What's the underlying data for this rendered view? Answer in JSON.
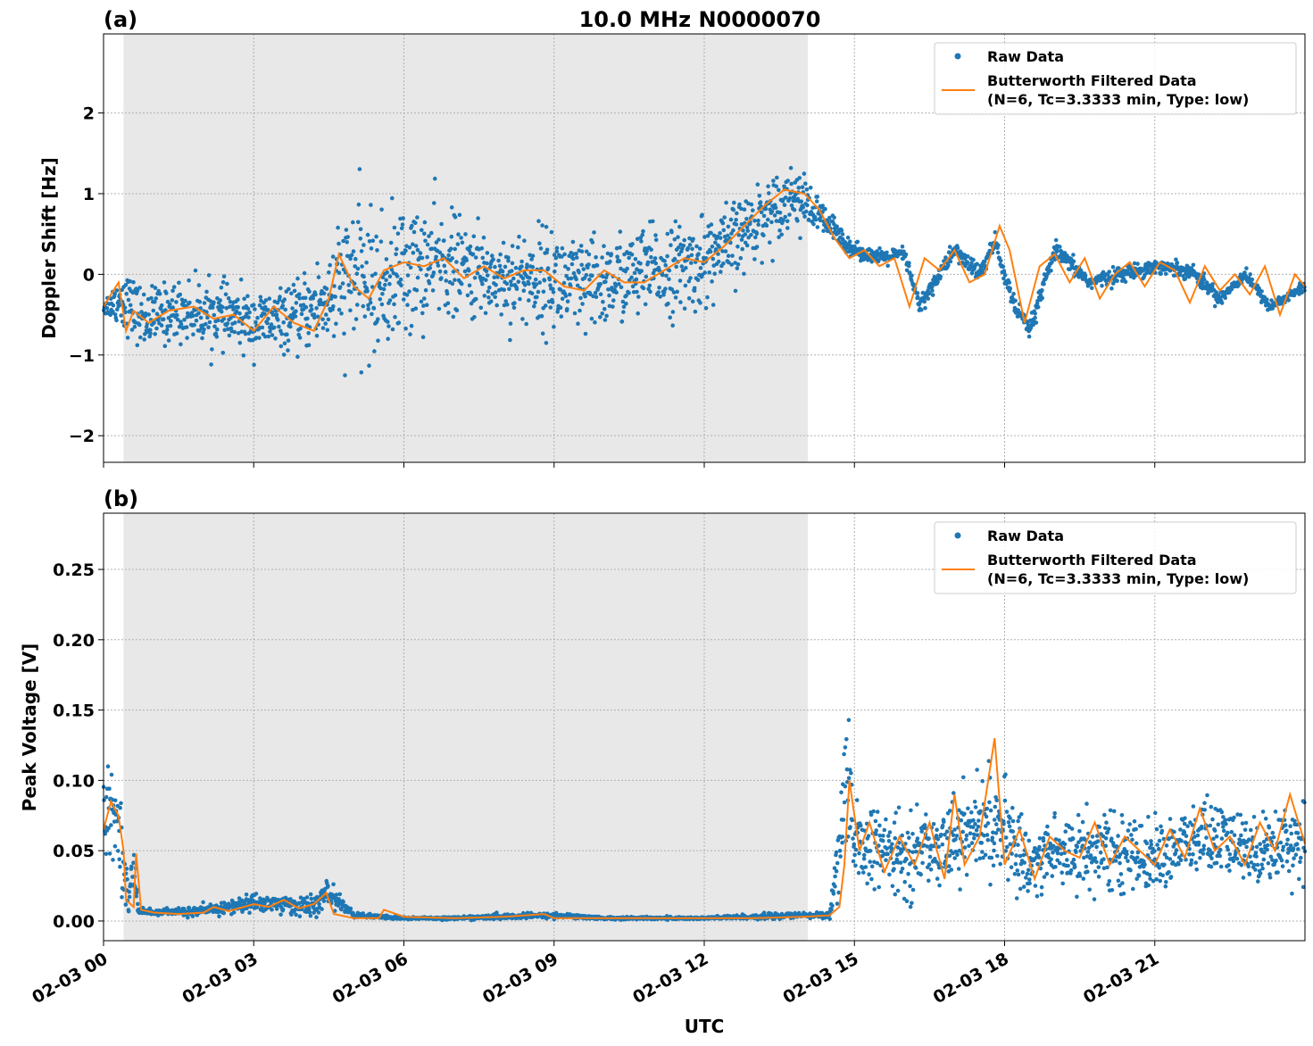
{
  "figure_title": "10.0 MHz N0000070",
  "x_tick_labels": [
    "02-03 00",
    "02-03 03",
    "02-03 06",
    "02-03 09",
    "02-03 12",
    "02-03 15",
    "02-03 18",
    "02-03 21"
  ],
  "x_label": "UTC",
  "colors": {
    "raw": "#1f77b4",
    "filtered": "#ff7f0e",
    "shade": "#e8e8e8"
  },
  "chart_data": [
    {
      "type": "scatter",
      "panel_label": "(a)",
      "ylabel": "Doppler Shift [Hz]",
      "xlim": [
        0,
        24
      ],
      "ylim": [
        -2.33,
        2.98
      ],
      "y_ticks": [
        -2,
        -1,
        0,
        1,
        2
      ],
      "y_tick_labels": [
        "−2",
        "−1",
        "0",
        "1",
        "2"
      ],
      "grid": true,
      "legend_position": "top-right",
      "legend": [
        "Raw Data",
        "Butterworth Filtered Data",
        "(N=6, Tc=3.3333 min, Type: low)"
      ],
      "shaded_x_range": [
        0.4,
        14.07
      ],
      "series": [
        {
          "name": "Raw Data",
          "style": "points",
          "x": [
            0.0,
            0.4,
            0.8,
            1.5,
            2.3,
            3.0,
            3.8,
            4.5,
            5.0,
            5.5,
            6.0,
            6.8,
            7.5,
            8.2,
            9.0,
            9.5,
            10.3,
            11.0,
            11.8,
            12.5,
            13.2,
            13.8,
            14.5,
            15.0,
            15.5,
            16.0,
            16.3,
            17.0,
            17.5,
            17.8,
            18.2,
            18.5,
            19.0,
            19.7,
            20.3,
            21.0,
            21.7,
            22.3,
            22.8,
            23.3,
            24.0
          ],
          "center": [
            -0.4,
            -0.3,
            -0.55,
            -0.45,
            -0.5,
            -0.6,
            -0.55,
            -0.3,
            0.0,
            -0.2,
            0.05,
            0.15,
            0.0,
            -0.05,
            -0.05,
            -0.2,
            -0.05,
            0.05,
            0.1,
            0.35,
            0.75,
            1.0,
            0.6,
            0.3,
            0.2,
            0.25,
            -0.4,
            0.3,
            0.0,
            0.4,
            -0.4,
            -0.7,
            0.3,
            -0.1,
            0.0,
            0.1,
            0.05,
            -0.3,
            0.0,
            -0.4,
            -0.15
          ],
          "spread": [
            0.1,
            0.4,
            0.4,
            0.4,
            0.4,
            0.4,
            0.4,
            0.7,
            1.0,
            0.9,
            0.9,
            0.7,
            0.6,
            0.6,
            0.7,
            0.7,
            0.6,
            0.6,
            0.6,
            0.55,
            0.45,
            0.4,
            0.2,
            0.1,
            0.1,
            0.1,
            0.12,
            0.12,
            0.12,
            0.15,
            0.12,
            0.12,
            0.12,
            0.1,
            0.1,
            0.1,
            0.1,
            0.1,
            0.08,
            0.08,
            0.08
          ]
        },
        {
          "name": "Butterworth Filtered Data",
          "style": "line",
          "x": [
            0.0,
            0.15,
            0.3,
            0.45,
            0.6,
            0.9,
            1.3,
            1.8,
            2.2,
            2.6,
            3.0,
            3.4,
            3.8,
            4.2,
            4.5,
            4.7,
            5.0,
            5.3,
            5.6,
            6.0,
            6.4,
            6.8,
            7.2,
            7.6,
            8.0,
            8.4,
            8.8,
            9.2,
            9.6,
            10.0,
            10.4,
            10.8,
            11.2,
            11.6,
            12.0,
            12.4,
            12.8,
            13.2,
            13.6,
            14.0,
            14.3,
            14.6,
            14.9,
            15.2,
            15.5,
            15.8,
            16.1,
            16.4,
            16.7,
            17.0,
            17.3,
            17.6,
            17.9,
            18.1,
            18.4,
            18.7,
            19.0,
            19.3,
            19.6,
            19.9,
            20.2,
            20.5,
            20.8,
            21.1,
            21.4,
            21.7,
            22.0,
            22.3,
            22.6,
            22.9,
            23.2,
            23.5,
            23.8,
            24.0
          ],
          "y": [
            -0.4,
            -0.25,
            -0.1,
            -0.7,
            -0.45,
            -0.6,
            -0.45,
            -0.4,
            -0.55,
            -0.5,
            -0.7,
            -0.4,
            -0.6,
            -0.7,
            -0.3,
            0.25,
            -0.15,
            -0.3,
            0.05,
            0.15,
            0.1,
            0.2,
            -0.05,
            0.1,
            -0.05,
            0.05,
            0.05,
            -0.15,
            -0.2,
            0.05,
            -0.1,
            -0.1,
            0.05,
            0.2,
            0.15,
            0.35,
            0.6,
            0.85,
            1.05,
            1.0,
            0.8,
            0.45,
            0.2,
            0.3,
            0.1,
            0.2,
            -0.4,
            0.2,
            0.05,
            0.3,
            -0.1,
            0.0,
            0.6,
            0.3,
            -0.6,
            0.1,
            0.25,
            -0.1,
            0.2,
            -0.3,
            0.0,
            0.15,
            -0.15,
            0.15,
            0.05,
            -0.35,
            0.1,
            -0.2,
            0.0,
            -0.25,
            0.1,
            -0.5,
            0.0,
            -0.15
          ]
        }
      ]
    },
    {
      "type": "scatter",
      "panel_label": "(b)",
      "ylabel": "Peak Voltage [V]",
      "xlim": [
        0,
        24
      ],
      "ylim": [
        -0.014,
        0.29
      ],
      "y_ticks": [
        0,
        0.05,
        0.1,
        0.15,
        0.2,
        0.25
      ],
      "y_tick_labels": [
        "0.00",
        "0.05",
        "0.10",
        "0.15",
        "0.20",
        "0.25"
      ],
      "grid": true,
      "legend_position": "top-right",
      "legend": [
        "Raw Data",
        "Butterworth Filtered Data",
        "(N=6, Tc=3.3333 min, Type: low)"
      ],
      "shaded_x_range": [
        0.4,
        14.07
      ],
      "series": [
        {
          "name": "Raw Data",
          "style": "points",
          "x": [
            0.0,
            0.2,
            0.35,
            0.5,
            0.6,
            0.7,
            1.0,
            2.0,
            3.0,
            3.5,
            4.2,
            4.5,
            5.0,
            6.0,
            7.0,
            8.0,
            9.0,
            10.0,
            11.0,
            12.0,
            13.0,
            14.0,
            14.5,
            14.85,
            15.0,
            15.5,
            16.0,
            17.0,
            17.8,
            18.5,
            19.0,
            20.0,
            21.0,
            22.0,
            23.0,
            24.0
          ],
          "center": [
            0.07,
            0.08,
            0.06,
            0.01,
            0.04,
            0.008,
            0.006,
            0.007,
            0.013,
            0.012,
            0.01,
            0.02,
            0.004,
            0.002,
            0.002,
            0.003,
            0.004,
            0.002,
            0.002,
            0.002,
            0.003,
            0.004,
            0.004,
            0.09,
            0.055,
            0.05,
            0.045,
            0.06,
            0.07,
            0.04,
            0.05,
            0.05,
            0.045,
            0.06,
            0.05,
            0.06
          ],
          "spread": [
            0.03,
            0.03,
            0.03,
            0.01,
            0.03,
            0.003,
            0.002,
            0.004,
            0.007,
            0.007,
            0.008,
            0.01,
            0.002,
            0.001,
            0.001,
            0.002,
            0.002,
            0.001,
            0.001,
            0.001,
            0.002,
            0.002,
            0.003,
            0.06,
            0.03,
            0.03,
            0.03,
            0.03,
            0.04,
            0.025,
            0.03,
            0.03,
            0.025,
            0.03,
            0.025,
            0.03
          ]
        },
        {
          "name": "Butterworth Filtered Data",
          "style": "line",
          "x": [
            0.0,
            0.15,
            0.3,
            0.4,
            0.45,
            0.6,
            0.65,
            0.75,
            1.0,
            1.5,
            2.0,
            2.2,
            2.5,
            3.0,
            3.3,
            3.6,
            3.9,
            4.2,
            4.45,
            4.6,
            5.0,
            5.5,
            5.6,
            6.0,
            7.0,
            8.0,
            8.8,
            9.0,
            10.0,
            11.0,
            12.0,
            13.0,
            14.0,
            14.5,
            14.7,
            14.8,
            14.9,
            15.1,
            15.3,
            15.6,
            15.9,
            16.2,
            16.5,
            16.8,
            17.0,
            17.2,
            17.5,
            17.8,
            18.0,
            18.3,
            18.6,
            18.9,
            19.2,
            19.5,
            19.8,
            20.1,
            20.4,
            20.7,
            21.0,
            21.3,
            21.6,
            21.9,
            22.2,
            22.5,
            22.8,
            23.1,
            23.4,
            23.7,
            24.0
          ],
          "y": [
            0.065,
            0.085,
            0.075,
            0.05,
            0.015,
            0.01,
            0.048,
            0.008,
            0.006,
            0.005,
            0.006,
            0.01,
            0.007,
            0.012,
            0.01,
            0.015,
            0.009,
            0.012,
            0.02,
            0.005,
            0.002,
            0.002,
            0.008,
            0.003,
            0.002,
            0.003,
            0.005,
            0.002,
            0.002,
            0.002,
            0.002,
            0.002,
            0.003,
            0.004,
            0.01,
            0.04,
            0.1,
            0.05,
            0.07,
            0.035,
            0.06,
            0.04,
            0.07,
            0.03,
            0.09,
            0.04,
            0.06,
            0.13,
            0.04,
            0.065,
            0.03,
            0.06,
            0.05,
            0.045,
            0.07,
            0.04,
            0.06,
            0.05,
            0.04,
            0.065,
            0.045,
            0.08,
            0.05,
            0.06,
            0.04,
            0.07,
            0.05,
            0.09,
            0.055
          ]
        }
      ]
    }
  ]
}
